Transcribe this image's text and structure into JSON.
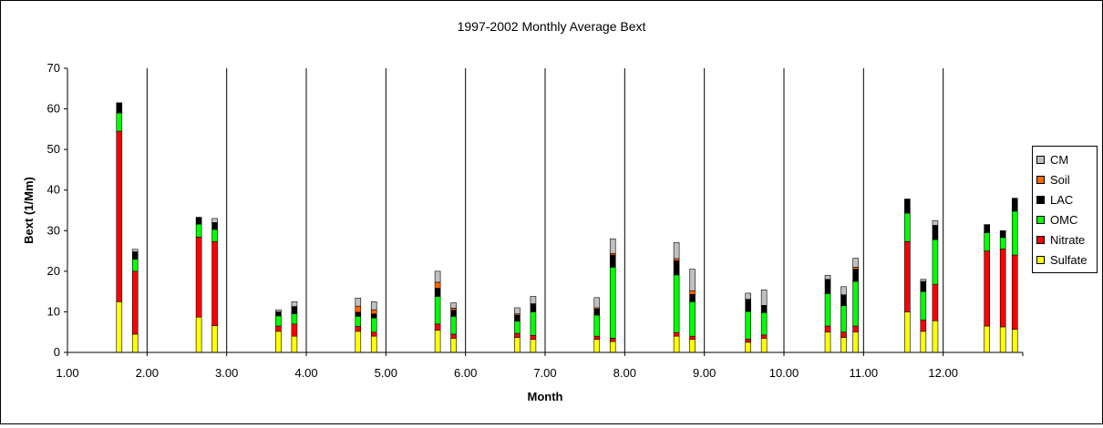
{
  "chart_data": {
    "type": "bar",
    "title": "1997-2002 Monthly Average Bext",
    "xlabel": "Month",
    "ylabel": "Bext (1/Mm)",
    "ylim": [
      0,
      70
    ],
    "xlim": [
      1,
      13
    ],
    "yticks": [
      0,
      10,
      20,
      30,
      40,
      50,
      60,
      70
    ],
    "xticks": [
      "1.00",
      "2.00",
      "3.00",
      "4.00",
      "5.00",
      "6.00",
      "7.00",
      "8.00",
      "9.00",
      "10.00",
      "11.00",
      "12.00"
    ],
    "grid": "vertical-lines",
    "legend_position": "right",
    "stacked": true,
    "series_order": [
      "Sulfate",
      "Nitrate",
      "OMC",
      "LAC",
      "Soil",
      "CM"
    ],
    "series_colors": {
      "Sulfate": "#ffff00",
      "Nitrate": "#ff0000",
      "OMC": "#00ff00",
      "LAC": "#000000",
      "Soil": "#ff6600",
      "CM": "#c0c0c0"
    },
    "legend": [
      "CM",
      "Soil",
      "LAC",
      "OMC",
      "Nitrate",
      "Sulfate"
    ],
    "bars": [
      {
        "x": 1.65,
        "values": {
          "Sulfate": 12.5,
          "Nitrate": 42.0,
          "OMC": 4.5,
          "LAC": 2.5,
          "Soil": 0.0,
          "CM": 0.0
        }
      },
      {
        "x": 1.85,
        "values": {
          "Sulfate": 4.5,
          "Nitrate": 15.5,
          "OMC": 3.0,
          "LAC": 1.8,
          "Soil": 0.0,
          "CM": 0.6
        }
      },
      {
        "x": 2.65,
        "values": {
          "Sulfate": 8.7,
          "Nitrate": 19.7,
          "OMC": 3.2,
          "LAC": 1.7,
          "Soil": 0.0,
          "CM": 0.0
        }
      },
      {
        "x": 2.85,
        "values": {
          "Sulfate": 6.6,
          "Nitrate": 20.7,
          "OMC": 3.0,
          "LAC": 1.7,
          "Soil": 0.0,
          "CM": 1.0
        }
      },
      {
        "x": 3.65,
        "values": {
          "Sulfate": 5.2,
          "Nitrate": 1.3,
          "OMC": 2.5,
          "LAC": 1.0,
          "Soil": 0.0,
          "CM": 0.5
        }
      },
      {
        "x": 3.85,
        "values": {
          "Sulfate": 4.0,
          "Nitrate": 3.0,
          "OMC": 2.5,
          "LAC": 1.8,
          "Soil": 0.0,
          "CM": 1.2
        }
      },
      {
        "x": 4.65,
        "values": {
          "Sulfate": 5.2,
          "Nitrate": 1.2,
          "OMC": 2.5,
          "LAC": 1.0,
          "Soil": 1.5,
          "CM": 2.0
        }
      },
      {
        "x": 4.85,
        "values": {
          "Sulfate": 4.0,
          "Nitrate": 1.0,
          "OMC": 3.5,
          "LAC": 1.0,
          "Soil": 1.0,
          "CM": 2.0
        }
      },
      {
        "x": 5.65,
        "values": {
          "Sulfate": 5.5,
          "Nitrate": 1.5,
          "OMC": 6.8,
          "LAC": 2.0,
          "Soil": 1.5,
          "CM": 2.7
        }
      },
      {
        "x": 5.85,
        "values": {
          "Sulfate": 3.5,
          "Nitrate": 1.0,
          "OMC": 4.4,
          "LAC": 1.5,
          "Soil": 0.5,
          "CM": 1.3
        }
      },
      {
        "x": 6.65,
        "values": {
          "Sulfate": 3.7,
          "Nitrate": 1.0,
          "OMC": 3.0,
          "LAC": 1.5,
          "Soil": 0.3,
          "CM": 1.5
        }
      },
      {
        "x": 6.85,
        "values": {
          "Sulfate": 3.2,
          "Nitrate": 1.0,
          "OMC": 5.8,
          "LAC": 1.8,
          "Soil": 0.2,
          "CM": 1.8
        }
      },
      {
        "x": 7.65,
        "values": {
          "Sulfate": 3.2,
          "Nitrate": 0.8,
          "OMC": 5.2,
          "LAC": 1.5,
          "Soil": 0.3,
          "CM": 2.5
        }
      },
      {
        "x": 7.85,
        "values": {
          "Sulfate": 2.7,
          "Nitrate": 0.8,
          "OMC": 17.5,
          "LAC": 3.0,
          "Soil": 0.4,
          "CM": 3.6
        }
      },
      {
        "x": 8.65,
        "values": {
          "Sulfate": 4.0,
          "Nitrate": 0.9,
          "OMC": 14.2,
          "LAC": 3.5,
          "Soil": 0.5,
          "CM": 4.0
        }
      },
      {
        "x": 8.85,
        "values": {
          "Sulfate": 3.2,
          "Nitrate": 0.8,
          "OMC": 8.5,
          "LAC": 1.8,
          "Soil": 0.9,
          "CM": 5.3
        }
      },
      {
        "x": 9.55,
        "values": {
          "Sulfate": 2.5,
          "Nitrate": 0.8,
          "OMC": 6.8,
          "LAC": 3.0,
          "Soil": 0.0,
          "CM": 1.5
        }
      },
      {
        "x": 9.75,
        "values": {
          "Sulfate": 3.5,
          "Nitrate": 0.8,
          "OMC": 5.5,
          "LAC": 1.8,
          "Soil": 0.0,
          "CM": 3.8
        }
      },
      {
        "x": 10.55,
        "values": {
          "Sulfate": 5.0,
          "Nitrate": 1.5,
          "OMC": 8.0,
          "LAC": 3.5,
          "Soil": 0.0,
          "CM": 1.0
        }
      },
      {
        "x": 10.75,
        "values": {
          "Sulfate": 3.7,
          "Nitrate": 1.3,
          "OMC": 6.5,
          "LAC": 2.7,
          "Soil": 0.0,
          "CM": 2.0
        }
      },
      {
        "x": 10.9,
        "values": {
          "Sulfate": 5.0,
          "Nitrate": 1.5,
          "OMC": 11.0,
          "LAC": 3.0,
          "Soil": 0.5,
          "CM": 2.2
        }
      },
      {
        "x": 11.55,
        "values": {
          "Sulfate": 10.0,
          "Nitrate": 17.3,
          "OMC": 7.0,
          "LAC": 3.5,
          "Soil": 0.0,
          "CM": 0.0
        }
      },
      {
        "x": 11.75,
        "values": {
          "Sulfate": 5.2,
          "Nitrate": 2.8,
          "OMC": 7.0,
          "LAC": 2.5,
          "Soil": 0.0,
          "CM": 0.5
        }
      },
      {
        "x": 11.9,
        "values": {
          "Sulfate": 7.8,
          "Nitrate": 9.0,
          "OMC": 11.0,
          "LAC": 3.5,
          "Soil": 0.0,
          "CM": 1.2
        }
      },
      {
        "x": 12.55,
        "values": {
          "Sulfate": 6.5,
          "Nitrate": 18.5,
          "OMC": 4.5,
          "LAC": 2.0,
          "Soil": 0.0,
          "CM": 0.0
        }
      },
      {
        "x": 12.75,
        "values": {
          "Sulfate": 6.3,
          "Nitrate": 19.2,
          "OMC": 2.8,
          "LAC": 1.7,
          "Soil": 0.0,
          "CM": 0.0
        }
      },
      {
        "x": 12.9,
        "values": {
          "Sulfate": 5.7,
          "Nitrate": 18.3,
          "OMC": 10.8,
          "LAC": 3.2,
          "Soil": 0.0,
          "CM": 0.0
        }
      }
    ]
  }
}
